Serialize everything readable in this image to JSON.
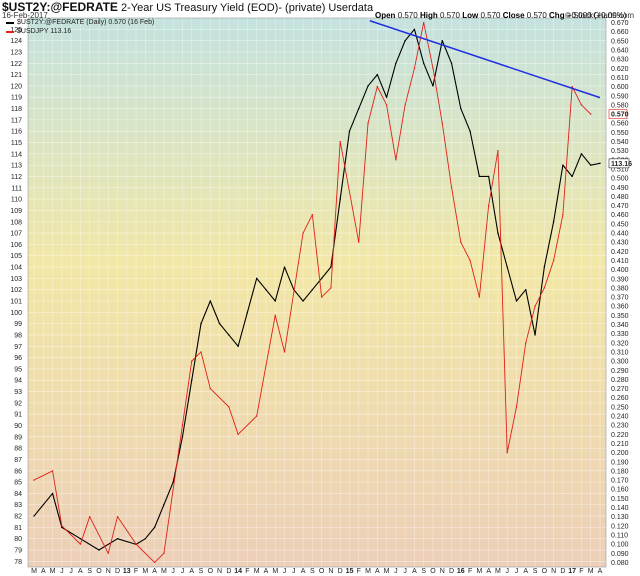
{
  "header": {
    "symbol": "$UST2Y:@FEDRATE",
    "description": "2-Year US Treasury Yield (EOD)- (private) Userdata",
    "date": "16-Feb-2017",
    "brand": "© StockCharts.com",
    "ohlc": {
      "open_label": "Open",
      "open": "0.570",
      "high_label": "High",
      "high": "0.570",
      "low_label": "Low",
      "low": "0.570",
      "close_label": "Close",
      "close": "0.570",
      "chg_label": "Chg",
      "chg": "+0.000 (+0.00%)"
    }
  },
  "legend": {
    "primary": "$UST2Y:@FEDRATE (Daily) 0.570 (16 Feb)",
    "secondary": "$USDJPY 113.16"
  },
  "colors": {
    "black_series": "#000000",
    "red_series": "#e0201a",
    "trendline": "#1f2fe0",
    "bg_top": "#c4e2df",
    "bg_mid": "#f2e7a6",
    "bg_bottom": "#eccfb8"
  },
  "chart_data": {
    "type": "line",
    "x_axis": {
      "labels": [
        "M",
        "A",
        "M",
        "J",
        "J",
        "A",
        "S",
        "O",
        "N",
        "D",
        "13",
        "F",
        "M",
        "A",
        "M",
        "J",
        "J",
        "A",
        "S",
        "O",
        "N",
        "D",
        "14",
        "F",
        "M",
        "A",
        "M",
        "J",
        "J",
        "A",
        "S",
        "O",
        "N",
        "D",
        "15",
        "F",
        "M",
        "A",
        "M",
        "J",
        "J",
        "A",
        "S",
        "O",
        "N",
        "D",
        "16",
        "F",
        "M",
        "A",
        "M",
        "J",
        "J",
        "A",
        "S",
        "O",
        "N",
        "D",
        "17",
        "F",
        "M",
        "A"
      ],
      "bold_labels": [
        "13",
        "14",
        "15",
        "16",
        "17"
      ]
    },
    "y_left": {
      "ylim": [
        77.5,
        126
      ],
      "ticks": [
        125,
        124,
        123,
        122,
        121,
        120,
        119,
        118,
        117,
        116,
        115,
        114,
        113,
        112,
        111,
        110,
        109,
        108,
        107,
        106,
        105,
        104,
        103,
        102,
        101,
        100,
        99,
        98,
        97,
        96,
        95,
        94,
        93,
        92,
        91,
        90,
        89,
        88,
        87,
        86,
        85,
        84,
        83,
        82,
        81,
        80,
        79,
        78
      ]
    },
    "y_right": {
      "ylim": [
        0.075,
        0.675
      ],
      "ticks": [
        "0.670",
        "0.660",
        "0.650",
        "0.640",
        "0.630",
        "0.620",
        "0.610",
        "0.600",
        "0.590",
        "0.580",
        "0.560",
        "0.550",
        "0.540",
        "0.530",
        "0.520",
        "0.510",
        "0.500",
        "0.490",
        "0.480",
        "0.470",
        "0.460",
        "0.450",
        "0.440",
        "0.430",
        "0.420",
        "0.410",
        "0.400",
        "0.390",
        "0.380",
        "0.370",
        "0.360",
        "0.350",
        "0.340",
        "0.330",
        "0.320",
        "0.310",
        "0.300",
        "0.290",
        "0.280",
        "0.270",
        "0.260",
        "0.250",
        "0.240",
        "0.230",
        "0.220",
        "0.210",
        "0.200",
        "0.190",
        "0.180",
        "0.170",
        "0.160",
        "0.150",
        "0.140",
        "0.130",
        "0.120",
        "0.110",
        "0.100",
        "0.090",
        "0.080"
      ],
      "last_value_tag": "0.570",
      "secondary_tag": "113.16"
    },
    "series": [
      {
        "name": "$USDJPY",
        "axis": "left",
        "x": [
          0,
          2,
          3,
          5,
          7,
          9,
          11,
          12,
          13,
          14,
          15,
          16,
          17,
          18,
          19,
          20,
          21,
          22,
          23,
          24,
          25,
          26,
          27,
          28,
          29,
          30,
          31,
          32,
          33,
          34,
          35,
          36,
          37,
          38,
          39,
          40,
          41,
          42,
          43,
          44,
          45,
          46,
          47,
          48,
          49,
          50,
          51,
          52,
          53,
          54,
          55,
          56,
          57,
          58,
          59,
          60,
          61
        ],
        "values": [
          82,
          84,
          81,
          80,
          79,
          80,
          79.5,
          80,
          81,
          83,
          85,
          89,
          94,
          99,
          101,
          99,
          98,
          97,
          100,
          103,
          102,
          101,
          104,
          102,
          101,
          102,
          103,
          104,
          110,
          116,
          118,
          120,
          121,
          119,
          122,
          124,
          125,
          122,
          120,
          124,
          122,
          118,
          116,
          112,
          112,
          107,
          104,
          101,
          102,
          98,
          104,
          108,
          113,
          112,
          114,
          113,
          113.16
        ]
      },
      {
        "name": "$UST2Y:@FEDRATE",
        "axis": "right",
        "x": [
          0,
          2,
          3,
          5,
          6,
          8,
          9,
          11,
          13,
          14,
          16,
          17,
          18,
          19,
          21,
          22,
          24,
          26,
          27,
          29,
          30,
          31,
          32,
          33,
          35,
          36,
          37,
          38,
          39,
          40,
          41,
          42,
          43,
          44,
          45,
          46,
          47,
          48,
          49,
          50,
          51,
          52,
          53,
          54,
          55,
          56,
          57,
          58,
          59,
          60
        ],
        "values": [
          0.17,
          0.18,
          0.12,
          0.1,
          0.13,
          0.09,
          0.13,
          0.1,
          0.08,
          0.09,
          0.23,
          0.3,
          0.31,
          0.27,
          0.25,
          0.22,
          0.24,
          0.35,
          0.31,
          0.44,
          0.46,
          0.37,
          0.38,
          0.54,
          0.43,
          0.56,
          0.6,
          0.58,
          0.52,
          0.58,
          0.62,
          0.67,
          0.62,
          0.56,
          0.49,
          0.43,
          0.41,
          0.37,
          0.47,
          0.53,
          0.2,
          0.25,
          0.32,
          0.36,
          0.38,
          0.41,
          0.46,
          0.6,
          0.58,
          0.57
        ]
      }
    ],
    "trendline": {
      "axis": "right",
      "x": [
        36.2,
        61
      ],
      "values": [
        0.672,
        0.588
      ]
    }
  }
}
